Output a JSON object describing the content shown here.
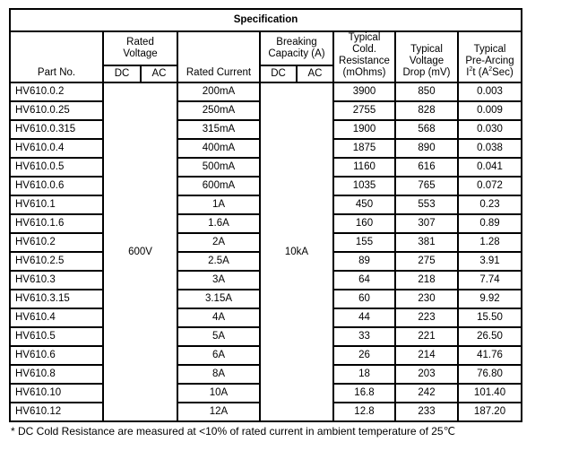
{
  "title": "Specification",
  "headers": {
    "part_no": "Part No.",
    "rated_voltage": "Rated Voltage",
    "dc": "DC",
    "ac": "AC",
    "rated_current": "Rated Current",
    "breaking_capacity": "Breaking Capacity (A)",
    "cold_resistance": [
      "Typical",
      "Cold.",
      "Resistance",
      "(mOhms)"
    ],
    "voltage_drop": [
      "Typical",
      "Voltage",
      "Drop (mV)"
    ],
    "pre_arcing": [
      "Typical",
      "Pre-Arcing",
      "I",
      "2",
      "t (A",
      "2",
      "Sec)"
    ]
  },
  "rated_voltage_value": "600V",
  "breaking_capacity_value": "10kA",
  "rows": [
    [
      "HV610.0.2",
      "200mA",
      "3900",
      "850",
      "0.003"
    ],
    [
      "HV610.0.25",
      "250mA",
      "2755",
      "828",
      "0.009"
    ],
    [
      "HV610.0.315",
      "315mA",
      "1900",
      "568",
      "0.030"
    ],
    [
      "HV610.0.4",
      "400mA",
      "1875",
      "890",
      "0.038"
    ],
    [
      "HV610.0.5",
      "500mA",
      "1160",
      "616",
      "0.041"
    ],
    [
      "HV610.0.6",
      "600mA",
      "1035",
      "765",
      "0.072"
    ],
    [
      "HV610.1",
      "1A",
      "450",
      "553",
      "0.23"
    ],
    [
      "HV610.1.6",
      "1.6A",
      "160",
      "307",
      "0.89"
    ],
    [
      "HV610.2",
      "2A",
      "155",
      "381",
      "1.28"
    ],
    [
      "HV610.2.5",
      "2.5A",
      "89",
      "275",
      "3.91"
    ],
    [
      "HV610.3",
      "3A",
      "64",
      "218",
      "7.74"
    ],
    [
      "HV610.3.15",
      "3.15A",
      "60",
      "230",
      "9.92"
    ],
    [
      "HV610.4",
      "4A",
      "44",
      "223",
      "15.50"
    ],
    [
      "HV610.5",
      "5A",
      "33",
      "221",
      "26.50"
    ],
    [
      "HV610.6",
      "6A",
      "26",
      "214",
      "41.76"
    ],
    [
      "HV610.8",
      "8A",
      "18",
      "203",
      "76.80"
    ],
    [
      "HV610.10",
      "10A",
      "16.8",
      "242",
      "101.40"
    ],
    [
      "HV610.12",
      "12A",
      "12.8",
      "233",
      "187.20"
    ]
  ],
  "footnote": "* DC Cold Resistance are measured at <10% of rated current in ambient temperature of 25℃"
}
